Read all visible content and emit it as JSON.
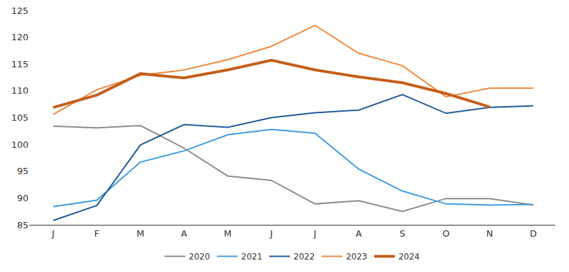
{
  "chart_data": {
    "type": "line",
    "categories": [
      "J",
      "F",
      "M",
      "A",
      "M",
      "J",
      "J",
      "A",
      "S",
      "O",
      "N",
      "D"
    ],
    "series": [
      {
        "name": "2020",
        "color": "#8c8c8c",
        "line_style": "solid",
        "values": [
          103.4,
          103.1,
          103.5,
          99.3,
          94.1,
          93.3,
          88.9,
          89.5,
          87.5,
          89.9,
          89.9,
          88.7
        ]
      },
      {
        "name": "2021",
        "color": "#3d9be0",
        "line_style": "solid",
        "values": [
          88.4,
          89.6,
          96.7,
          98.8,
          101.8,
          102.8,
          102.1,
          95.4,
          91.3,
          88.9,
          88.7,
          88.8
        ]
      },
      {
        "name": "2022",
        "color": "#1f5a9a",
        "line_style": "solid",
        "values": [
          85.8,
          88.6,
          99.9,
          103.7,
          103.2,
          105.0,
          105.9,
          106.4,
          109.3,
          105.8,
          106.9,
          107.2
        ]
      },
      {
        "name": "2023",
        "color": "#f08a3c",
        "line_style": "solid",
        "values": [
          105.6,
          110.2,
          112.9,
          113.9,
          115.8,
          118.3,
          122.2,
          117.0,
          114.7,
          108.9,
          110.5,
          110.5
        ]
      },
      {
        "name": "2024",
        "color": "#c45f1c",
        "line_style": "bold",
        "values": [
          106.9,
          109.2,
          113.2,
          112.4,
          113.9,
          115.7,
          113.9,
          112.6,
          111.5,
          109.5,
          107.0,
          null
        ]
      }
    ],
    "ylim": [
      85,
      125
    ],
    "yticks": [
      85,
      90,
      95,
      100,
      105,
      110,
      115,
      120,
      125
    ],
    "grid": false,
    "legend": "bottom"
  }
}
